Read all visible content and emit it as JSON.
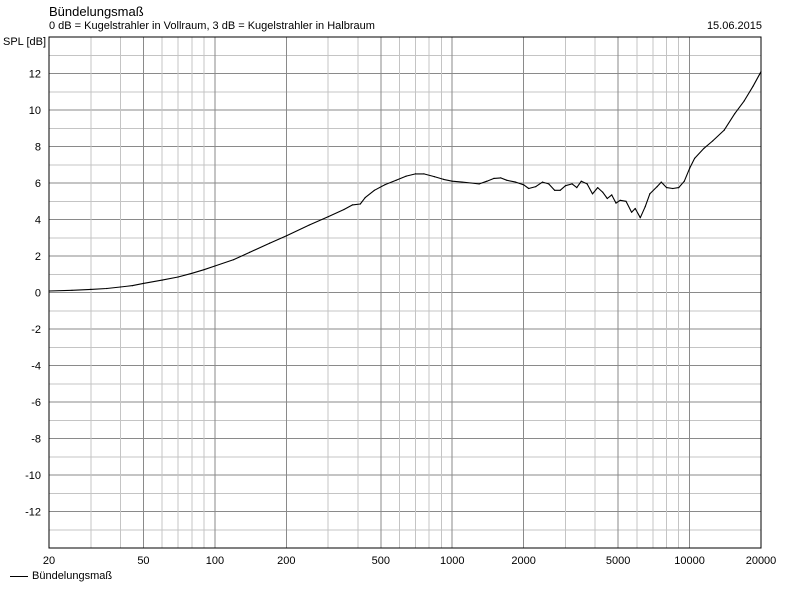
{
  "chart_data": {
    "type": "line",
    "title": "Bündelungsmaß",
    "subtitle": "0 dB = Kugelstrahler in Vollraum, 3 dB = Kugelstrahler in Halbraum",
    "date": "15.06.2015",
    "ylabel": "SPL [dB]",
    "xlabel": "",
    "xscale": "log",
    "xlim": [
      20,
      20000
    ],
    "ylim": [
      -14,
      14
    ],
    "grid": true,
    "legend_position": "bottom-left",
    "x_tick_labels": [
      "20",
      "50",
      "100",
      "200",
      "500",
      "1000",
      "2000",
      "5000",
      "10000",
      "20000"
    ],
    "y_tick_labels": [
      "12",
      "10",
      "8",
      "6",
      "4",
      "2",
      "0",
      "-2",
      "-4",
      "-6",
      "-8",
      "-10",
      "-12"
    ],
    "series": [
      {
        "name": "Bündelungsmaß",
        "color": "#000000",
        "points": [
          [
            20,
            0.08
          ],
          [
            25,
            0.12
          ],
          [
            30,
            0.17
          ],
          [
            35,
            0.22
          ],
          [
            40,
            0.3
          ],
          [
            45,
            0.38
          ],
          [
            50,
            0.5
          ],
          [
            60,
            0.68
          ],
          [
            70,
            0.85
          ],
          [
            80,
            1.05
          ],
          [
            90,
            1.25
          ],
          [
            100,
            1.45
          ],
          [
            120,
            1.8
          ],
          [
            140,
            2.2
          ],
          [
            170,
            2.7
          ],
          [
            200,
            3.1
          ],
          [
            250,
            3.7
          ],
          [
            300,
            4.15
          ],
          [
            350,
            4.55
          ],
          [
            380,
            4.8
          ],
          [
            410,
            4.85
          ],
          [
            430,
            5.2
          ],
          [
            470,
            5.6
          ],
          [
            520,
            5.9
          ],
          [
            580,
            6.15
          ],
          [
            640,
            6.38
          ],
          [
            700,
            6.5
          ],
          [
            760,
            6.5
          ],
          [
            840,
            6.35
          ],
          [
            920,
            6.2
          ],
          [
            1000,
            6.1
          ],
          [
            1100,
            6.05
          ],
          [
            1200,
            6.0
          ],
          [
            1300,
            5.95
          ],
          [
            1400,
            6.1
          ],
          [
            1500,
            6.25
          ],
          [
            1600,
            6.28
          ],
          [
            1700,
            6.15
          ],
          [
            1850,
            6.05
          ],
          [
            2000,
            5.9
          ],
          [
            2100,
            5.7
          ],
          [
            2250,
            5.8
          ],
          [
            2400,
            6.05
          ],
          [
            2550,
            5.95
          ],
          [
            2700,
            5.6
          ],
          [
            2850,
            5.6
          ],
          [
            3000,
            5.85
          ],
          [
            3200,
            5.95
          ],
          [
            3350,
            5.75
          ],
          [
            3500,
            6.1
          ],
          [
            3700,
            5.95
          ],
          [
            3900,
            5.4
          ],
          [
            4100,
            5.75
          ],
          [
            4300,
            5.5
          ],
          [
            4500,
            5.15
          ],
          [
            4700,
            5.35
          ],
          [
            4900,
            4.9
          ],
          [
            5100,
            5.05
          ],
          [
            5400,
            5.0
          ],
          [
            5700,
            4.4
          ],
          [
            5900,
            4.6
          ],
          [
            6200,
            4.1
          ],
          [
            6500,
            4.7
          ],
          [
            6800,
            5.4
          ],
          [
            7300,
            5.8
          ],
          [
            7600,
            6.05
          ],
          [
            8000,
            5.75
          ],
          [
            8500,
            5.7
          ],
          [
            9000,
            5.75
          ],
          [
            9500,
            6.1
          ],
          [
            10000,
            6.8
          ],
          [
            10500,
            7.35
          ],
          [
            11500,
            7.9
          ],
          [
            12500,
            8.3
          ],
          [
            14000,
            8.9
          ],
          [
            15500,
            9.8
          ],
          [
            17000,
            10.5
          ],
          [
            18500,
            11.3
          ],
          [
            20000,
            12.1
          ]
        ]
      }
    ]
  }
}
